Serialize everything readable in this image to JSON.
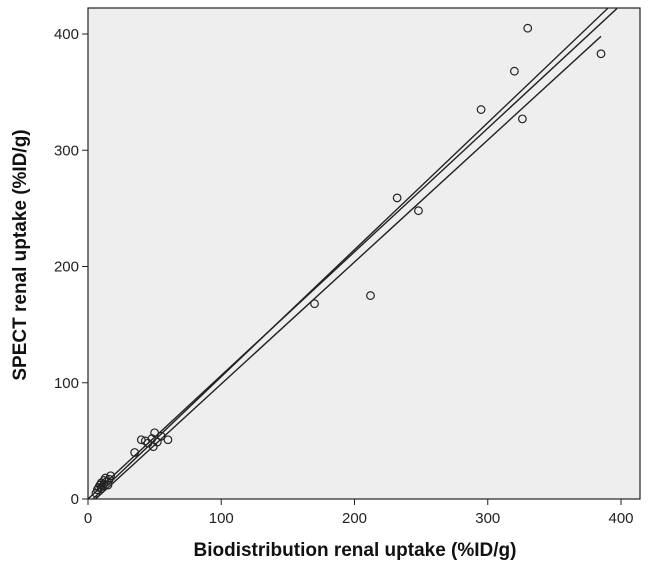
{
  "chart_data": {
    "type": "scatter",
    "title": "",
    "xlabel": "Biodistribution renal uptake (%ID/g)",
    "ylabel": "SPECT renal uptake (%ID/g)",
    "xlim": [
      0,
      400
    ],
    "ylim": [
      0,
      400
    ],
    "x_ticks": [
      0,
      100,
      200,
      300,
      400
    ],
    "y_ticks": [
      0,
      100,
      200,
      300,
      400
    ],
    "grid": false,
    "plot_background": "#eeeeee",
    "marker": "open-circle",
    "points": [
      {
        "x": 6,
        "y": 5
      },
      {
        "x": 7,
        "y": 8
      },
      {
        "x": 8,
        "y": 10
      },
      {
        "x": 9,
        "y": 12
      },
      {
        "x": 10,
        "y": 9
      },
      {
        "x": 10,
        "y": 14
      },
      {
        "x": 11,
        "y": 11
      },
      {
        "x": 12,
        "y": 16
      },
      {
        "x": 12,
        "y": 13
      },
      {
        "x": 13,
        "y": 18
      },
      {
        "x": 14,
        "y": 15
      },
      {
        "x": 15,
        "y": 12
      },
      {
        "x": 16,
        "y": 17
      },
      {
        "x": 17,
        "y": 20
      },
      {
        "x": 35,
        "y": 40
      },
      {
        "x": 40,
        "y": 51
      },
      {
        "x": 43,
        "y": 50
      },
      {
        "x": 45,
        "y": 48
      },
      {
        "x": 48,
        "y": 52
      },
      {
        "x": 49,
        "y": 45
      },
      {
        "x": 50,
        "y": 57
      },
      {
        "x": 52,
        "y": 49
      },
      {
        "x": 55,
        "y": 54
      },
      {
        "x": 60,
        "y": 51
      },
      {
        "x": 170,
        "y": 168
      },
      {
        "x": 212,
        "y": 175
      },
      {
        "x": 232,
        "y": 259
      },
      {
        "x": 248,
        "y": 248
      },
      {
        "x": 295,
        "y": 335
      },
      {
        "x": 320,
        "y": 368
      },
      {
        "x": 326,
        "y": 327
      },
      {
        "x": 330,
        "y": 405
      },
      {
        "x": 385,
        "y": 383
      }
    ],
    "lines": [
      {
        "x": [
          0,
          397
        ],
        "y": [
          0,
          422
        ]
      },
      {
        "x": [
          0,
          390
        ],
        "y": [
          -4,
          422
        ]
      },
      {
        "x": [
          0,
          385
        ],
        "y": [
          -6,
          398
        ]
      }
    ]
  }
}
